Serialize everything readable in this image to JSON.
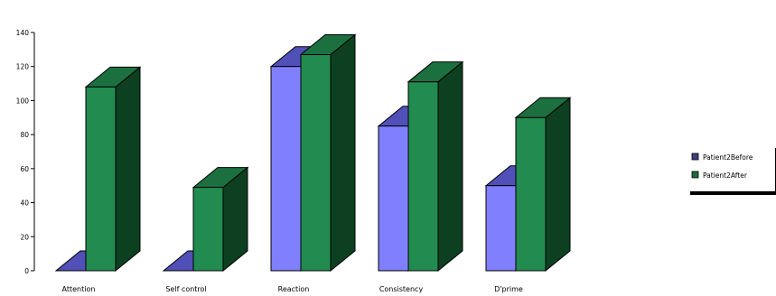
{
  "chart_data": {
    "type": "bar",
    "style": "3d-clustered",
    "categories": [
      "Attention",
      "Self control",
      "Reaction",
      "Consistency",
      "D'prime"
    ],
    "series": [
      {
        "name": "Patient2Before",
        "values": [
          0,
          0,
          120,
          85,
          50
        ],
        "color": "#8080ff",
        "side_color": "#40409a",
        "top_color": "#5050b8"
      },
      {
        "name": "Patient2After",
        "values": [
          108,
          49,
          127,
          111,
          90
        ],
        "color": "#228b50",
        "side_color": "#0c4020",
        "top_color": "#1c7040"
      }
    ],
    "ylim": [
      0,
      140
    ],
    "yticks": [
      0,
      20,
      40,
      60,
      80,
      100,
      120,
      140
    ],
    "legend_position": "right",
    "grid": false,
    "title": "",
    "xlabel": "",
    "ylabel": ""
  }
}
